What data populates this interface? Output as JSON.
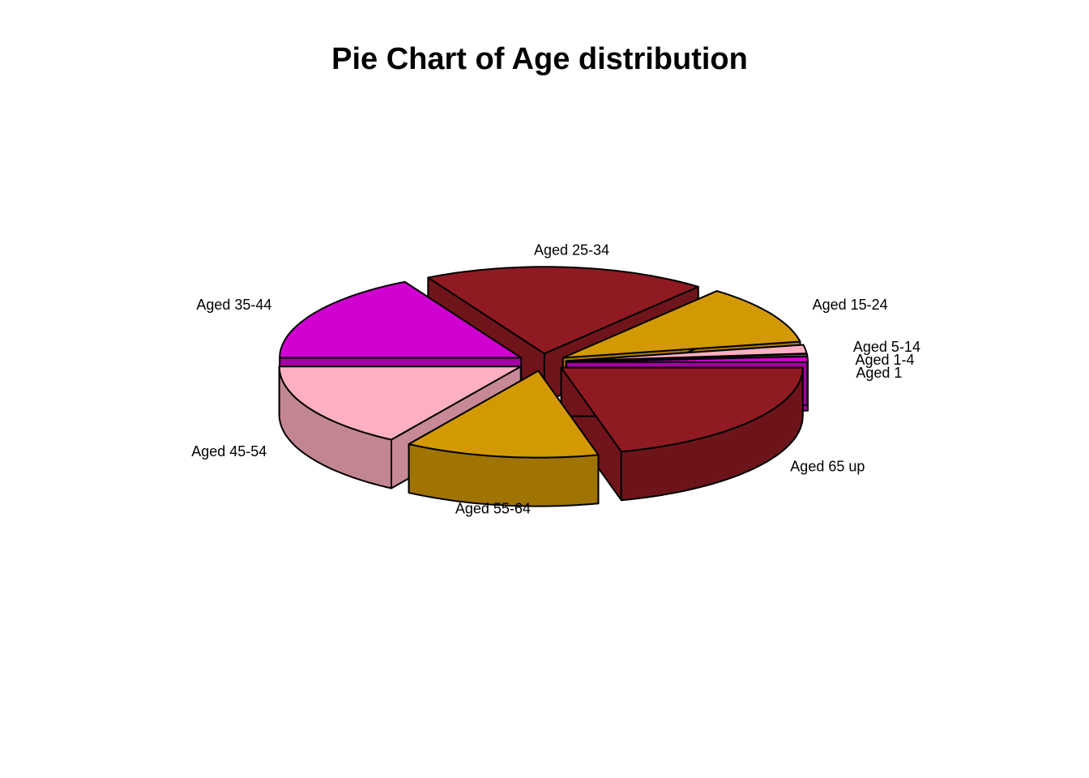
{
  "chart_data": {
    "type": "pie",
    "style": "3d-exploded",
    "title": "Pie Chart of Age distribution",
    "categories": [
      "Aged 1",
      "Aged 1-4",
      "Aged 5-14",
      "Aged 15-24",
      "Aged 25-34",
      "Aged 35-44",
      "Aged 45-54",
      "Aged 55-64",
      "Aged 65 up"
    ],
    "values": [
      1.0,
      0.4,
      1.6,
      11.0,
      19.0,
      17.0,
      16.0,
      13.0,
      21.0
    ],
    "colors": [
      "#d000d0",
      "#b88a8a",
      "#ffb0c0",
      "#d29904",
      "#901a22",
      "#d000d0",
      "#ffb0c0",
      "#d29904",
      "#901a22"
    ],
    "legend": "none"
  }
}
